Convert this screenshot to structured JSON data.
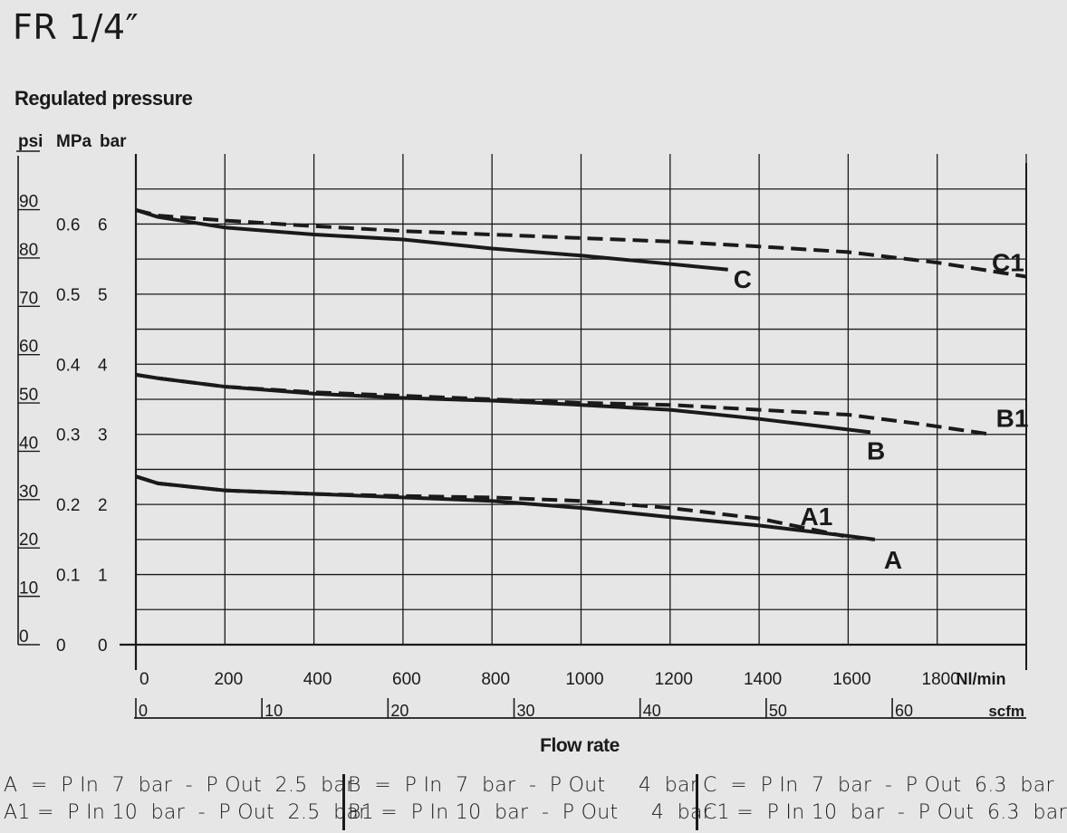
{
  "page": {
    "title": "FR 1/4″",
    "y_axis_title": "Regulated pressure",
    "x_axis_title": "Flow rate"
  },
  "chart_data": {
    "type": "line",
    "title": "FR 1/4″",
    "xlabel": "Flow rate",
    "ylabel": "Regulated pressure",
    "x_unit": "Nl/min",
    "x_unit_secondary": "scfm",
    "y_units": [
      "psi",
      "MPa",
      "bar"
    ],
    "xlim": [
      0,
      2000
    ],
    "ylim": [
      0,
      7
    ],
    "grid": true,
    "x_ticks": [
      0,
      200,
      400,
      600,
      800,
      1000,
      1200,
      1400,
      1600,
      1800
    ],
    "x_tick_labels": [
      "0",
      "200",
      "400",
      "600",
      "800",
      "1000",
      "1200",
      "1400",
      "1600",
      "1800"
    ],
    "scfm_ticks": [
      0,
      10,
      20,
      30,
      40,
      50,
      60
    ],
    "scfm_tick_labels": [
      "0",
      "10",
      "20",
      "30",
      "40",
      "50",
      "60"
    ],
    "bar_ticks": [
      0,
      1,
      2,
      3,
      4,
      5,
      6
    ],
    "bar_tick_labels": [
      "0",
      "1",
      "2",
      "3",
      "4",
      "5",
      "6"
    ],
    "mpa_ticks": [
      0,
      0.1,
      0.2,
      0.3,
      0.4,
      0.5,
      0.6
    ],
    "mpa_tick_labels": [
      "0",
      "0.1",
      "0.2",
      "0.3",
      "0.4",
      "0.5",
      "0.6"
    ],
    "psi_ticks": [
      0,
      10,
      20,
      30,
      40,
      50,
      60,
      70,
      80,
      90
    ],
    "psi_tick_labels": [
      "0",
      "10",
      "20",
      "30",
      "40",
      "50",
      "60",
      "70",
      "80",
      "90"
    ],
    "series": [
      {
        "name": "A",
        "style": "solid",
        "x": [
          0,
          50,
          200,
          400,
          600,
          800,
          1000,
          1200,
          1400,
          1600,
          1660
        ],
        "y": [
          2.4,
          2.3,
          2.2,
          2.15,
          2.1,
          2.05,
          1.95,
          1.82,
          1.7,
          1.55,
          1.5
        ]
      },
      {
        "name": "A1",
        "style": "dashed",
        "x": [
          0,
          50,
          200,
          400,
          600,
          800,
          1000,
          1200,
          1400,
          1590
        ],
        "y": [
          2.4,
          2.3,
          2.2,
          2.15,
          2.12,
          2.1,
          2.05,
          1.95,
          1.8,
          1.55
        ]
      },
      {
        "name": "B",
        "style": "solid",
        "x": [
          0,
          50,
          200,
          400,
          600,
          800,
          1000,
          1200,
          1400,
          1650
        ],
        "y": [
          3.85,
          3.8,
          3.68,
          3.58,
          3.52,
          3.48,
          3.42,
          3.35,
          3.22,
          3.03
        ]
      },
      {
        "name": "B1",
        "style": "dashed",
        "x": [
          0,
          50,
          200,
          400,
          600,
          800,
          1000,
          1200,
          1400,
          1600,
          1760,
          1920
        ],
        "y": [
          3.85,
          3.8,
          3.68,
          3.6,
          3.55,
          3.5,
          3.45,
          3.42,
          3.35,
          3.28,
          3.15,
          3.0
        ]
      },
      {
        "name": "C",
        "style": "solid",
        "x": [
          0,
          50,
          200,
          400,
          600,
          800,
          1000,
          1200,
          1330
        ],
        "y": [
          6.2,
          6.1,
          5.95,
          5.85,
          5.78,
          5.65,
          5.55,
          5.43,
          5.35
        ]
      },
      {
        "name": "C1",
        "style": "dashed",
        "x": [
          0,
          50,
          200,
          400,
          600,
          800,
          1000,
          1200,
          1400,
          1600,
          1800,
          2000
        ],
        "y": [
          6.2,
          6.12,
          6.05,
          5.97,
          5.9,
          5.85,
          5.8,
          5.75,
          5.68,
          5.6,
          5.45,
          5.25
        ]
      }
    ],
    "curve_labels": [
      "A",
      "A1",
      "B",
      "B1",
      "C",
      "C1"
    ]
  },
  "legend": [
    [
      "A  =  P In  7  bar  -  P Out  2.5  bar",
      "A1 =  P In 10  bar  -  P Out  2.5  bar"
    ],
    [
      "B  =  P In  7  bar  -  P Out     4  bar",
      "B1 =  P In 10  bar  -  P Out     4  bar"
    ],
    [
      "C  =  P In  7  bar  -  P Out  6.3  bar",
      "C1 =  P In 10  bar  -  P Out  6.3  bar"
    ]
  ]
}
